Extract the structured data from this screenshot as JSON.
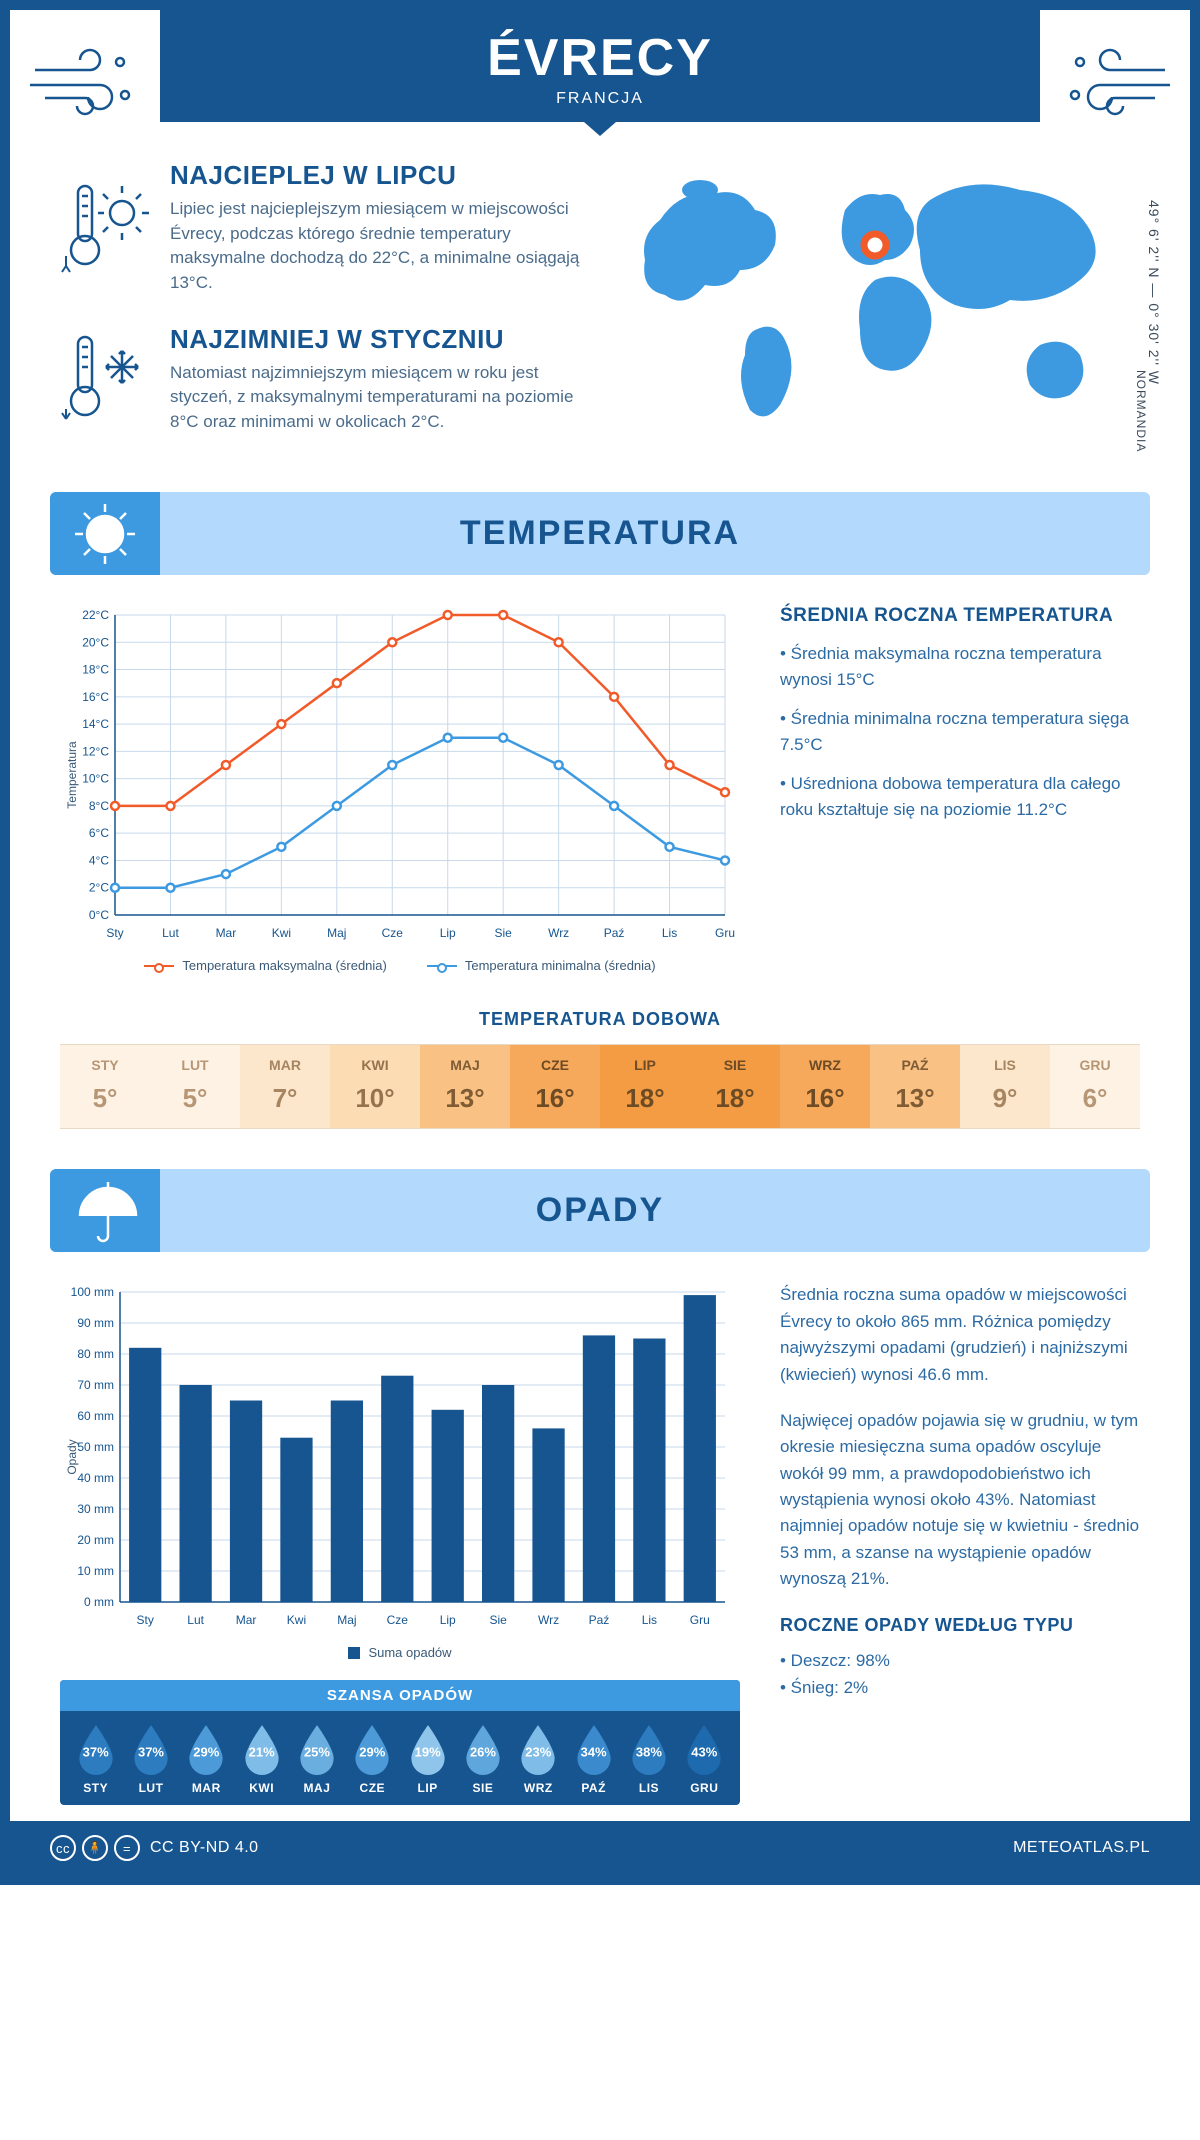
{
  "header": {
    "title": "ÉVRECY",
    "subtitle": "FRANCJA"
  },
  "coords": "49° 6' 2'' N — 0° 30' 2'' W",
  "region": "NORMANDIA",
  "highlights": {
    "warm": {
      "title": "NAJCIEPLEJ W LIPCU",
      "text": "Lipiec jest najcieplejszym miesiącem w miejscowości Évrecy, podczas którego średnie temperatury maksymalne dochodzą do 22°C, a minimalne osiągają 13°C."
    },
    "cold": {
      "title": "NAJZIMNIEJ W STYCZNIU",
      "text": "Natomiast najzimniejszym miesiącem w roku jest styczeń, z maksymalnymi temperaturami na poziomie 8°C oraz minimami w okolicach 2°C."
    }
  },
  "temperature_section": {
    "title": "TEMPERATURA",
    "info_title": "ŚREDNIA ROCZNA TEMPERATURA",
    "bullets": [
      "• Średnia maksymalna roczna temperatura wynosi 15°C",
      "• Średnia minimalna roczna temperatura sięga 7.5°C",
      "• Uśredniona dobowa temperatura dla całego roku kształtuje się na poziomie 11.2°C"
    ],
    "chart": {
      "type": "line",
      "months": [
        "Sty",
        "Lut",
        "Mar",
        "Kwi",
        "Maj",
        "Cze",
        "Lip",
        "Sie",
        "Wrz",
        "Paź",
        "Lis",
        "Gru"
      ],
      "max_series": [
        8,
        8,
        11,
        14,
        17,
        20,
        22,
        22,
        20,
        16,
        11,
        9
      ],
      "min_series": [
        2,
        2,
        3,
        5,
        8,
        11,
        13,
        13,
        11,
        8,
        5,
        4
      ],
      "max_color": "#f15a29",
      "min_color": "#3d9ae0",
      "ylim": [
        0,
        22
      ],
      "ytick_step": 2,
      "grid_color": "#c7d9ea",
      "ylabel": "Temperatura",
      "legend_max": "Temperatura maksymalna (średnia)",
      "legend_min": "Temperatura minimalna (średnia)"
    },
    "daily": {
      "title": "TEMPERATURA DOBOWA",
      "months": [
        "STY",
        "LUT",
        "MAR",
        "KWI",
        "MAJ",
        "CZE",
        "LIP",
        "SIE",
        "WRZ",
        "PAŹ",
        "LIS",
        "GRU"
      ],
      "values": [
        "5°",
        "5°",
        "7°",
        "10°",
        "13°",
        "16°",
        "18°",
        "18°",
        "16°",
        "13°",
        "9°",
        "6°"
      ],
      "bg_colors": [
        "#fdf2e3",
        "#fdf2e3",
        "#fce7cd",
        "#fcdcb3",
        "#f9c184",
        "#f6a95a",
        "#f39c44",
        "#f39c44",
        "#f6a95a",
        "#f9c184",
        "#fce7cd",
        "#fdf2e3"
      ],
      "text_colors": [
        "#b79676",
        "#b79676",
        "#a78560",
        "#96734c",
        "#7f5c34",
        "#6d4b25",
        "#6d4b25",
        "#6d4b25",
        "#6d4b25",
        "#7f5c34",
        "#a78560",
        "#b79676"
      ]
    }
  },
  "precip_section": {
    "title": "OPADY",
    "chart": {
      "type": "bar",
      "months": [
        "Sty",
        "Lut",
        "Mar",
        "Kwi",
        "Maj",
        "Cze",
        "Lip",
        "Sie",
        "Wrz",
        "Paź",
        "Lis",
        "Gru"
      ],
      "values": [
        82,
        70,
        65,
        53,
        65,
        73,
        62,
        70,
        56,
        86,
        85,
        99
      ],
      "bar_color": "#16558f",
      "ylim": [
        0,
        100
      ],
      "ytick_step": 10,
      "grid_color": "#c7d9ea",
      "ylabel": "Opady",
      "legend": "Suma opadów",
      "unit": "mm"
    },
    "para1": "Średnia roczna suma opadów w miejscowości Évrecy to około 865 mm. Różnica pomiędzy najwyższymi opadami (grudzień) i najniższymi (kwiecień) wynosi 46.6 mm.",
    "para2": "Najwięcej opadów pojawia się w grudniu, w tym okresie miesięczna suma opadów oscyluje wokół 99 mm, a prawdopodobieństwo ich wystąpienia wynosi około 43%. Natomiast najmniej opadów notuje się w kwietniu - średnio 53 mm, a szanse na wystąpienie opadów wynoszą 21%.",
    "chance": {
      "title": "SZANSA OPADÓW",
      "months": [
        "STY",
        "LUT",
        "MAR",
        "KWI",
        "MAJ",
        "CZE",
        "LIP",
        "SIE",
        "WRZ",
        "PAŹ",
        "LIS",
        "GRU"
      ],
      "values": [
        "37%",
        "37%",
        "29%",
        "21%",
        "25%",
        "29%",
        "19%",
        "26%",
        "23%",
        "34%",
        "38%",
        "43%"
      ],
      "drop_colors": [
        "#2d7cc0",
        "#2d7cc0",
        "#4c9ad8",
        "#7fbce8",
        "#6aaee0",
        "#4c9ad8",
        "#8fc5ea",
        "#5ea6dc",
        "#7fbce8",
        "#3a8acd",
        "#2d7cc0",
        "#1e6aae"
      ]
    },
    "type_title": "ROCZNE OPADY WEDŁUG TYPU",
    "type_rain": "• Deszcz: 98%",
    "type_snow": "• Śnieg: 2%"
  },
  "footer": {
    "license": "CC BY-ND 4.0",
    "site": "METEOATLAS.PL"
  }
}
